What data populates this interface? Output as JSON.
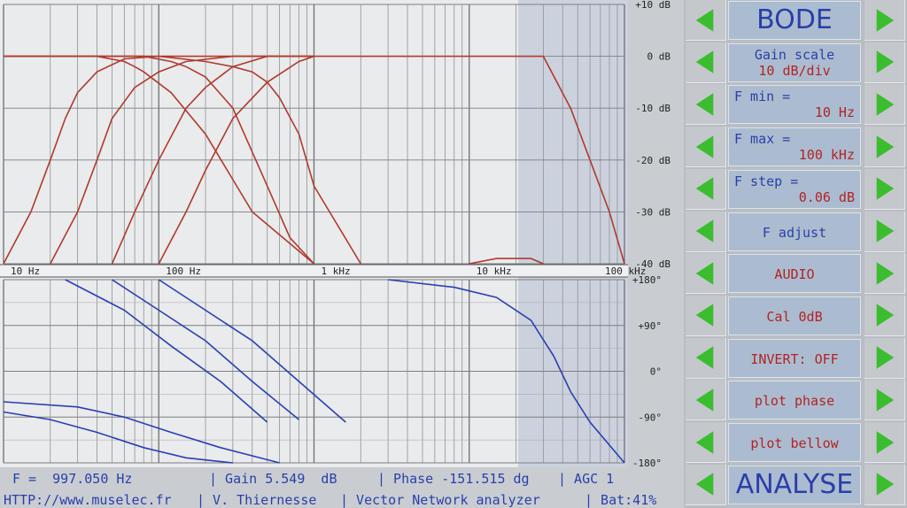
{
  "gain_axis_labels": [
    "+10 dB",
    "0 dB",
    "-10 dB",
    "-20 dB",
    "-30 dB",
    "-40 dB"
  ],
  "phase_axis_labels": [
    "+180°",
    "+90°",
    "0°",
    "-90°",
    "-180°"
  ],
  "freq_labels": [
    "10 Hz",
    "100 Hz",
    "1 kHz",
    "10 kHz",
    "100 kHz"
  ],
  "panel": {
    "title": "BODE",
    "gain_scale": {
      "label": "Gain scale",
      "value": "10 dB/div"
    },
    "fmin": {
      "label": "F min =",
      "value": "10 Hz"
    },
    "fmax": {
      "label": "F max =",
      "value": "100 kHz"
    },
    "fstep": {
      "label": "F step =",
      "value": "0.06 dB"
    },
    "fadjust": "F adjust",
    "audio": "AUDIO",
    "cal": "Cal  0dB",
    "invert": "INVERT: OFF",
    "plot_phase": "plot phase",
    "plot_bellow": "plot bellow",
    "analyse": "ANALYSE"
  },
  "status": {
    "freq": "F =  997.050 Hz",
    "gain": "| Gain 5.549  dB",
    "phase": "| Phase -151.515 dg",
    "agc": "| AGC 1",
    "url": "HTTP://www.muselec.fr",
    "author": "| V. Thiernesse",
    "app": "| Vector Network analyzer",
    "bat": "| Bat:41%"
  },
  "colors": {
    "gain_trace": "#b03a2e",
    "phase_trace": "#2a3fb0",
    "aux_trace": "#c060c0",
    "arrow": "#3bbd2f"
  },
  "chart_data": [
    {
      "type": "line",
      "x_scale": "log",
      "xlim": [
        10,
        100000
      ],
      "ylim": [
        -40,
        10
      ],
      "series": [
        {
          "x": [
            10,
            15,
            20,
            25,
            30,
            40,
            60,
            100,
            200,
            1000
          ],
          "values": [
            -40,
            -30,
            -20,
            -12,
            -7,
            -3,
            -0.5,
            0,
            0,
            0
          ]
        },
        {
          "x": [
            10,
            20,
            40,
            60,
            70,
            80,
            120,
            200,
            400,
            1000
          ],
          "values": [
            0,
            0,
            0,
            -1,
            -2,
            -3,
            -7,
            -15,
            -30,
            -40
          ]
        },
        {
          "x": [
            20,
            30,
            40,
            50,
            70,
            100,
            150,
            300,
            1000
          ],
          "values": [
            -40,
            -30,
            -20,
            -12,
            -6,
            -3,
            -1,
            0,
            0
          ]
        },
        {
          "x": [
            10,
            40,
            80,
            120,
            150,
            200,
            300,
            500,
            700,
            1000
          ],
          "values": [
            0,
            0,
            0,
            -1,
            -2,
            -4,
            -10,
            -25,
            -35,
            -40
          ]
        },
        {
          "x": [
            50,
            70,
            100,
            150,
            200,
            300,
            500,
            1000
          ],
          "values": [
            -40,
            -30,
            -20,
            -10,
            -6,
            -2,
            0,
            0
          ]
        },
        {
          "x": [
            10,
            100,
            200,
            300,
            400,
            500,
            600,
            800,
            1000,
            2000
          ],
          "values": [
            0,
            0,
            -1,
            -2,
            -3,
            -5,
            -8,
            -15,
            -25,
            -40
          ]
        },
        {
          "x": [
            100,
            150,
            200,
            300,
            500,
            800,
            1000,
            2000,
            10000,
            30000,
            45000,
            60000,
            80000,
            100000
          ],
          "values": [
            -40,
            -30,
            -22,
            -12,
            -5,
            -1,
            0,
            0,
            0,
            0,
            -10,
            -20,
            -30,
            -40
          ]
        },
        {
          "x": [
            10000,
            15000,
            20000,
            25000,
            30000
          ],
          "values": [
            -40,
            -39,
            -39,
            -39,
            -40
          ]
        }
      ]
    },
    {
      "type": "line",
      "x_scale": "log",
      "xlim": [
        10,
        100000
      ],
      "ylim": [
        -180,
        180
      ],
      "series": [
        {
          "x": [
            10,
            20,
            40,
            80,
            150,
            300
          ],
          "values": [
            -80,
            -95,
            -120,
            -150,
            -170,
            -180
          ]
        },
        {
          "x": [
            10,
            30,
            60,
            120,
            250,
            600
          ],
          "values": [
            -60,
            -70,
            -90,
            -120,
            -150,
            -180
          ]
        },
        {
          "x": [
            25,
            60,
            120,
            250,
            500
          ],
          "values": [
            180,
            120,
            50,
            -20,
            -100
          ]
        },
        {
          "x": [
            50,
            100,
            200,
            400,
            800
          ],
          "values": [
            180,
            120,
            60,
            -20,
            -95
          ]
        },
        {
          "x": [
            100,
            200,
            400,
            800,
            1600
          ],
          "values": [
            180,
            120,
            60,
            -20,
            -100
          ]
        },
        {
          "x": [
            3000,
            8000,
            15000,
            25000,
            35000,
            45000,
            60000,
            100000
          ],
          "values": [
            180,
            165,
            145,
            100,
            30,
            -40,
            -100,
            -180
          ]
        }
      ]
    }
  ]
}
